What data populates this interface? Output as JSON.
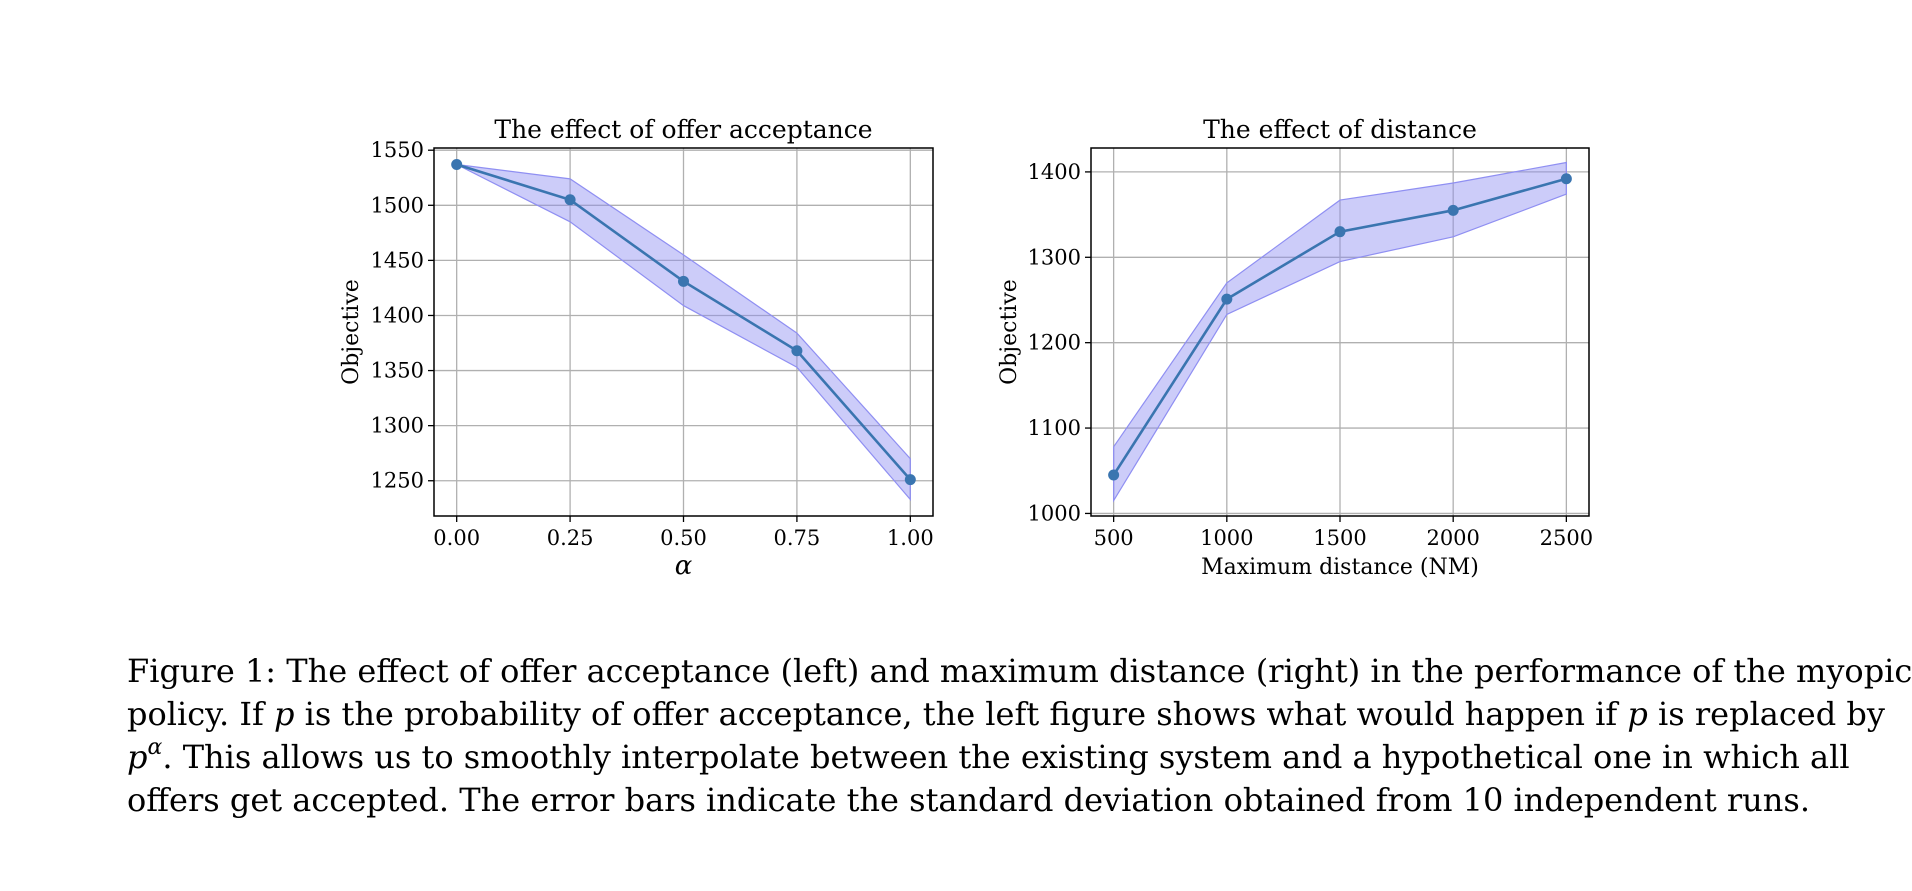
{
  "chart_data": [
    {
      "type": "line",
      "title": "The effect of offer acceptance",
      "xlabel": "α",
      "ylabel": "Objective",
      "x": [
        0.0,
        0.25,
        0.5,
        0.75,
        1.0
      ],
      "x_tick_values": [
        0.0,
        0.25,
        0.5,
        0.75,
        1.0
      ],
      "x_tick_labels": [
        "0.00",
        "0.25",
        "0.50",
        "0.75",
        "1.00"
      ],
      "xlim": [
        -0.05,
        1.05
      ],
      "y_tick_values": [
        1250,
        1300,
        1350,
        1400,
        1450,
        1500,
        1550
      ],
      "y_tick_labels": [
        "1250",
        "1300",
        "1350",
        "1400",
        "1450",
        "1500",
        "1550"
      ],
      "ylim": [
        1218,
        1552
      ],
      "grid": true,
      "series": [
        {
          "name": "mean",
          "values": [
            1537,
            1505,
            1431,
            1368,
            1251
          ],
          "lower": [
            1537,
            1485,
            1409,
            1353,
            1233
          ],
          "upper": [
            1537,
            1524,
            1455,
            1384,
            1270
          ]
        }
      ]
    },
    {
      "type": "line",
      "title": "The effect of distance",
      "xlabel": "Maximum distance (NM)",
      "ylabel": "Objective",
      "x": [
        500,
        1000,
        1500,
        2000,
        2500
      ],
      "x_tick_values": [
        500,
        1000,
        1500,
        2000,
        2500
      ],
      "x_tick_labels": [
        "500",
        "1000",
        "1500",
        "2000",
        "2500"
      ],
      "xlim": [
        400,
        2600
      ],
      "y_tick_values": [
        1000,
        1100,
        1200,
        1300,
        1400
      ],
      "y_tick_labels": [
        "1000",
        "1100",
        "1200",
        "1300",
        "1400"
      ],
      "ylim": [
        997,
        1428
      ],
      "grid": true,
      "series": [
        {
          "name": "mean",
          "values": [
            1045,
            1251,
            1330,
            1355,
            1392
          ],
          "lower": [
            1015,
            1233,
            1295,
            1324,
            1374
          ],
          "upper": [
            1078,
            1270,
            1367,
            1387,
            1411
          ]
        }
      ]
    }
  ],
  "colors": {
    "line": "#3a75b0",
    "band": "#8f8ff2",
    "grid": "#b0b0b0"
  },
  "caption": {
    "line1": "Figure 1: The effect of offer acceptance (left) and maximum distance (right) in the performance of the myopic",
    "line2a": "policy. If ",
    "p": "p",
    "line2b": " is the probability of offer acceptance, the left figure shows what would happen if ",
    "line2c": " is replaced by",
    "alpha": "α",
    "line3": ". This allows us to smoothly interpolate between the existing system and a hypothetical one in which all",
    "line4": "offers get accepted. The error bars indicate the standard deviation obtained from 10 independent runs."
  }
}
